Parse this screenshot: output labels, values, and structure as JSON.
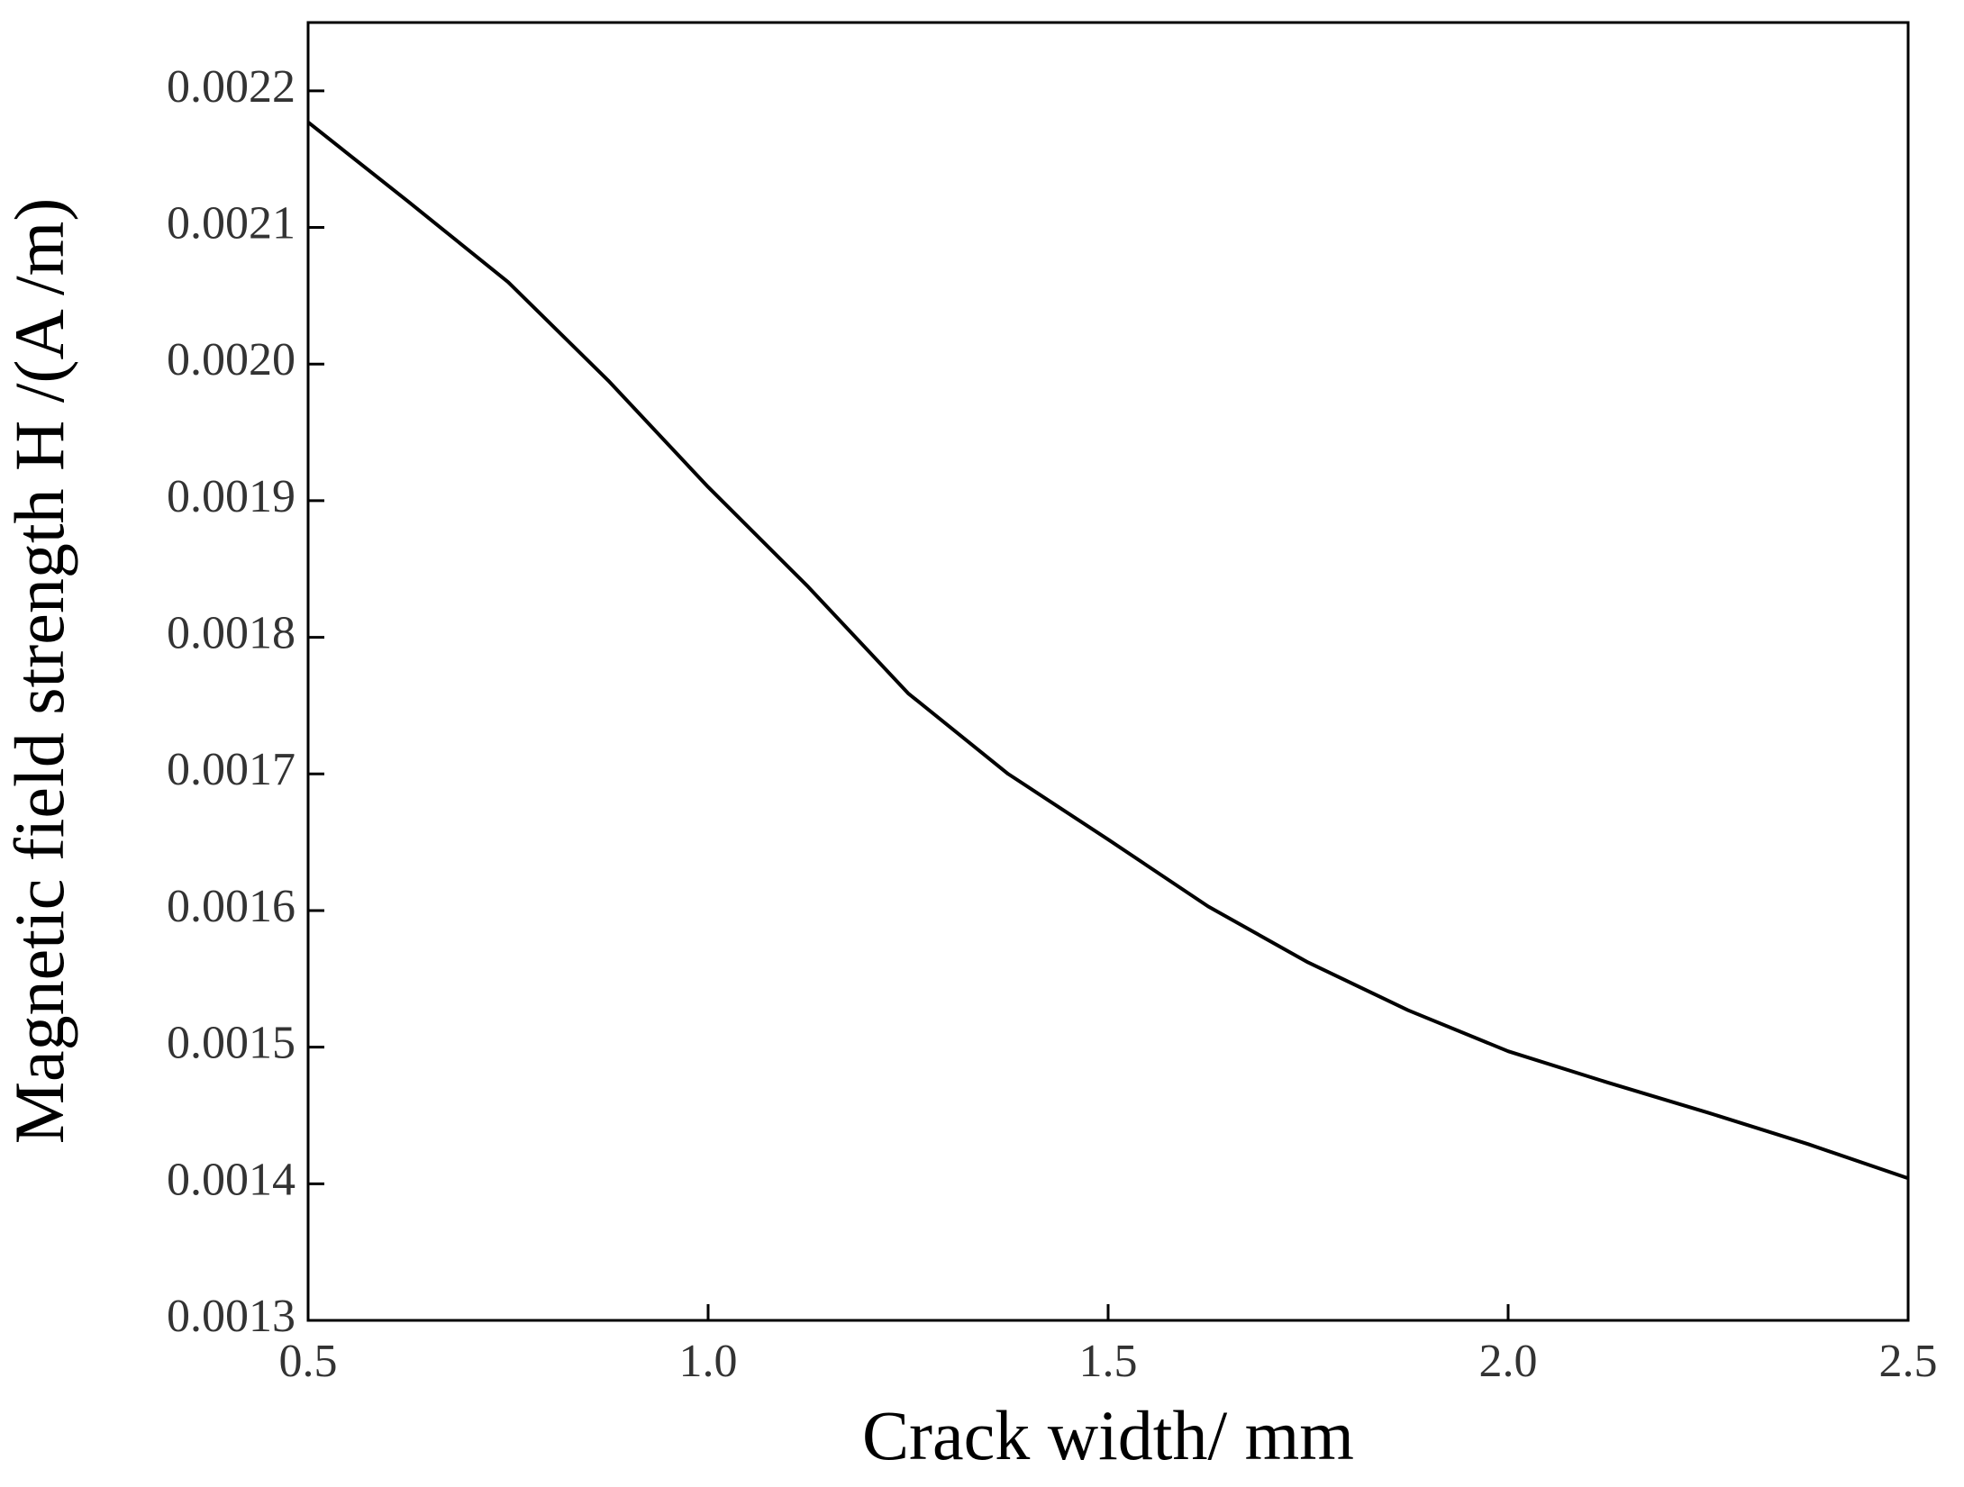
{
  "chart_data": {
    "type": "line",
    "xlabel": "Crack width/ mm",
    "ylabel": "Magnetic field strength H /(A /m)",
    "x": [
      0.5,
      0.625,
      0.75,
      0.875,
      1.0,
      1.125,
      1.25,
      1.375,
      1.5,
      1.625,
      1.75,
      1.875,
      2.0,
      2.125,
      2.25,
      2.375,
      2.5
    ],
    "series": [
      {
        "color": "#000000",
        "values": [
          0.002177,
          0.002119,
          0.00206,
          0.001988,
          0.00191,
          0.001837,
          0.001759,
          0.0017,
          0.001652,
          0.001603,
          0.001562,
          0.001527,
          0.001497,
          0.001474,
          0.001452,
          0.001429,
          0.001404
        ]
      }
    ],
    "xlim": [
      0.5,
      2.5
    ],
    "xticks": [
      0.5,
      {
        "value": 1,
        "label": "1.0"
      },
      1.5,
      {
        "value": 2,
        "label": "2.0"
      },
      2.5
    ],
    "ylim": [
      0.0013,
      0.00225
    ],
    "yticks": [
      0.0013,
      0.0014,
      0.0015,
      0.0016,
      0.0017,
      0.0018,
      0.0019,
      {
        "value": 0.002,
        "label": "0.0020"
      },
      0.0021,
      0.0022
    ],
    "grid": false
  }
}
